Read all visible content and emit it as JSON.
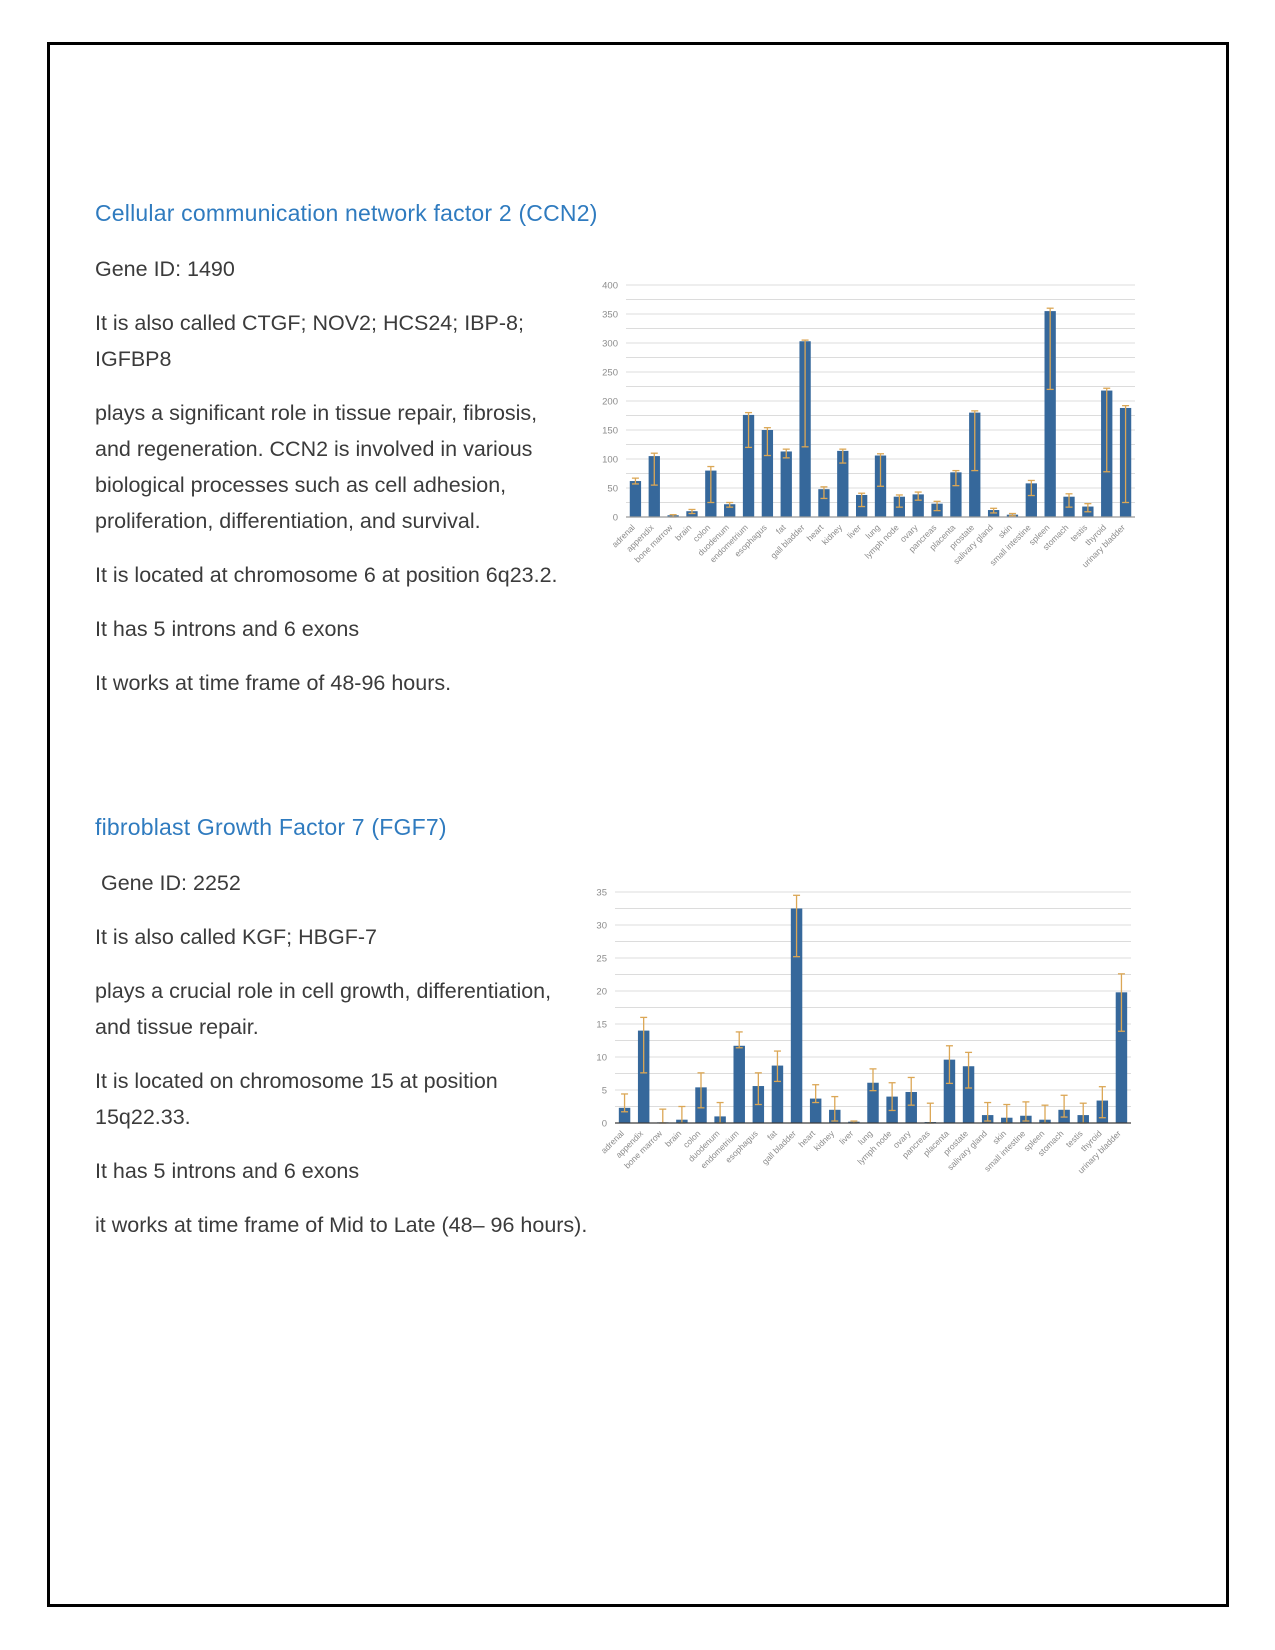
{
  "page": {
    "background": "#ffffff",
    "border_color": "#000000"
  },
  "theme": {
    "heading_color": "#2f7bbf",
    "text_color": "#3b3b3b"
  },
  "sections": [
    {
      "id": "ccn2",
      "title": "Cellular communication network factor 2 (CCN2)",
      "paragraphs": [
        "Gene ID: 1490",
        "It is also called CTGF; NOV2; HCS24; IBP-8; IGFBP8",
        "plays a significant role in tissue repair, fibrosis, and regeneration. CCN2 is involved in various biological processes such as cell adhesion, proliferation, differentiation, and survival.",
        "It is located at chromosome 6 at position 6q23.2.",
        "It has 5 introns and 6 exons",
        "It works at time frame of 48-96 hours."
      ]
    },
    {
      "id": "fgf7",
      "title": "fibroblast Growth Factor 7 (FGF7)",
      "paragraphs": [
        " Gene ID: 2252",
        "It is also called KGF; HBGF-7",
        "plays a crucial role in cell growth, differentiation, and tissue repair.",
        "It is located on chromosome 15 at position 15q22.33.",
        "It has 5 introns and 6 exons",
        "it works at time frame of Mid to Late (48– 96 hours)."
      ]
    }
  ],
  "chart_data": [
    {
      "type": "bar",
      "name": "ccn2-tissue-expression",
      "title": "",
      "xlabel": "",
      "ylabel": "",
      "grid": true,
      "legend_position": "none",
      "categories": [
        "adrenal",
        "appendix",
        "bone marrow",
        "brain",
        "colon",
        "duodenum",
        "endometrium",
        "esophagus",
        "fat",
        "gall bladder",
        "heart",
        "kidney",
        "liver",
        "lung",
        "lymph node",
        "ovary",
        "pancreas",
        "placenta",
        "prostate",
        "salivary gland",
        "skin",
        "small intestine",
        "spleen",
        "stomach",
        "testis",
        "thyroid",
        "urinary bladder"
      ],
      "values": [
        62,
        105,
        3,
        10,
        80,
        22,
        176,
        150,
        113,
        303,
        48,
        114,
        38,
        106,
        35,
        39,
        23,
        77,
        180,
        12,
        4,
        58,
        355,
        35,
        18,
        218,
        188
      ],
      "error_low": [
        57,
        55,
        0,
        6,
        25,
        17,
        120,
        106,
        102,
        121,
        32,
        93,
        18,
        53,
        17,
        29,
        11,
        54,
        80,
        7,
        2,
        37,
        220,
        17,
        9,
        78,
        25
      ],
      "error_high": [
        67,
        110,
        4,
        13,
        87,
        25,
        180,
        154,
        117,
        305,
        52,
        117,
        41,
        109,
        38,
        43,
        27,
        80,
        183,
        15,
        6,
        63,
        360,
        40,
        23,
        222,
        192
      ],
      "ylim": [
        0,
        400
      ],
      "ytick_step": 50,
      "grid_step": 25,
      "bar_color": "#36689b",
      "error_color": "#dba756",
      "grid_color": "#dcdcdc",
      "tick_color": "#8c8c8c",
      "axis_color": "#9a9a9a"
    },
    {
      "type": "bar",
      "name": "fgf7-tissue-expression",
      "title": "",
      "xlabel": "",
      "ylabel": "",
      "grid": true,
      "legend_position": "none",
      "categories": [
        "adrenal",
        "appendix",
        "bone marrow",
        "brain",
        "colon",
        "duodenum",
        "endometrium",
        "esophagus",
        "fat",
        "gall bladder",
        "heart",
        "kidney",
        "liver",
        "lung",
        "lymph node",
        "ovary",
        "pancreas",
        "placenta",
        "prostate",
        "salivary gland",
        "skin",
        "small intestine",
        "spleen",
        "stomach",
        "testis",
        "thyroid",
        "urinary bladder"
      ],
      "values": [
        2.3,
        14.0,
        0.1,
        0.5,
        5.4,
        1.0,
        11.7,
        5.6,
        8.7,
        32.5,
        3.7,
        2.0,
        0.2,
        6.1,
        4.0,
        4.7,
        0.15,
        9.6,
        8.6,
        1.2,
        0.8,
        1.1,
        0.5,
        2.0,
        1.2,
        3.4,
        19.8
      ],
      "error_low": [
        1.7,
        7.6,
        0,
        0,
        2.3,
        0,
        11.4,
        2.8,
        6.3,
        25.2,
        3.1,
        0.3,
        0,
        4.9,
        1.9,
        2.7,
        0,
        6.0,
        5.3,
        0.3,
        0,
        0.3,
        0,
        0.9,
        0,
        0.8,
        13.9
      ],
      "error_high": [
        4.4,
        16.0,
        2.1,
        2.5,
        7.6,
        3.1,
        13.8,
        7.6,
        10.9,
        34.5,
        5.8,
        4.0,
        0.3,
        8.2,
        6.1,
        6.9,
        3.0,
        11.7,
        10.7,
        3.1,
        2.8,
        3.2,
        2.7,
        4.2,
        3.0,
        5.5,
        22.6
      ],
      "ylim": [
        0,
        35
      ],
      "ytick_step": 5,
      "grid_step": 2.5,
      "bar_color": "#36689b",
      "error_color": "#dba756",
      "grid_color": "#dcdcdc",
      "tick_color": "#8c8c8c",
      "axis_color": "#3c3c3c"
    }
  ]
}
